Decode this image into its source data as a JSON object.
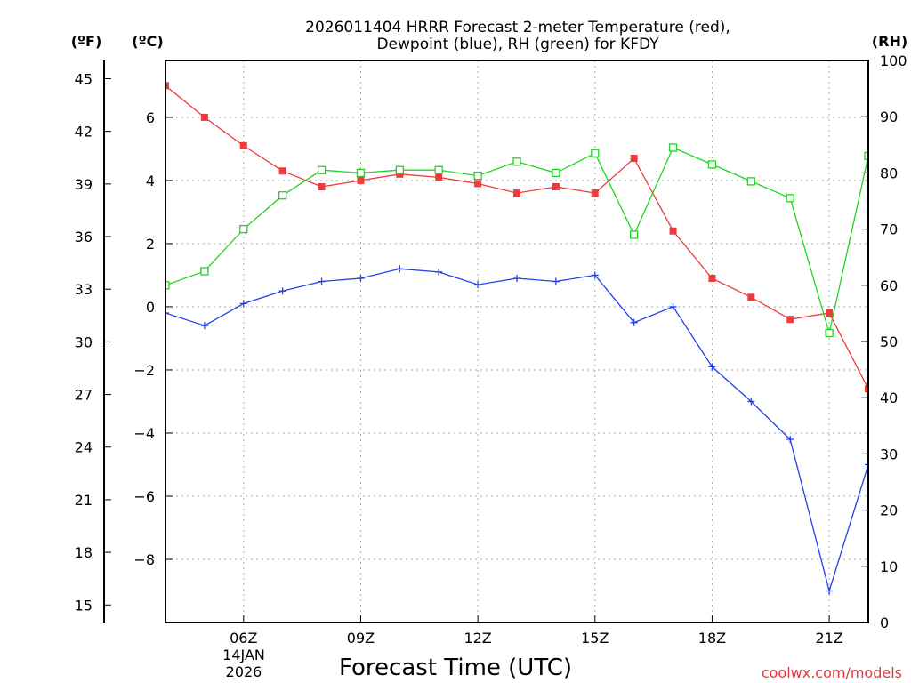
{
  "chart_data": {
    "type": "line",
    "title": [
      "2026011404 HRRR Forecast 2-meter Temperature (red),",
      "Dewpoint (blue), RH (green) for KFDY"
    ],
    "xlabel": "Forecast Time (UTC)",
    "date_label": [
      "14JAN",
      "2026"
    ],
    "credit": "coolwx.com/models",
    "unit_labels": {
      "fahrenheit": "(ºF)",
      "celsius": "(ºC)",
      "rh": "(RH)"
    },
    "x_range": [
      4,
      22
    ],
    "x_ticks": [
      {
        "hour": 6,
        "label": "06Z"
      },
      {
        "hour": 9,
        "label": "09Z"
      },
      {
        "hour": 12,
        "label": "12Z"
      },
      {
        "hour": 15,
        "label": "15Z"
      },
      {
        "hour": 18,
        "label": "18Z"
      },
      {
        "hour": 21,
        "label": "21Z"
      }
    ],
    "celsius_range": [
      -10.0,
      7.8
    ],
    "celsius_ticks": [
      {
        "value": 6,
        "label": "6"
      },
      {
        "value": 4,
        "label": "4"
      },
      {
        "value": 2,
        "label": "2"
      },
      {
        "value": 0,
        "label": "0"
      },
      {
        "value": -2,
        "label": "−2"
      },
      {
        "value": -4,
        "label": "−4"
      },
      {
        "value": -6,
        "label": "−6"
      },
      {
        "value": -8,
        "label": "−8"
      }
    ],
    "fahrenheit_ticks": [
      {
        "value": 45,
        "label": "45"
      },
      {
        "value": 42,
        "label": "42"
      },
      {
        "value": 39,
        "label": "39"
      },
      {
        "value": 36,
        "label": "36"
      },
      {
        "value": 33,
        "label": "33"
      },
      {
        "value": 30,
        "label": "30"
      },
      {
        "value": 27,
        "label": "27"
      },
      {
        "value": 24,
        "label": "24"
      },
      {
        "value": 21,
        "label": "21"
      },
      {
        "value": 18,
        "label": "18"
      },
      {
        "value": 15,
        "label": "15"
      }
    ],
    "rh_range": [
      0,
      100
    ],
    "rh_ticks": [
      {
        "value": 100,
        "label": "100"
      },
      {
        "value": 90,
        "label": "90"
      },
      {
        "value": 80,
        "label": "80"
      },
      {
        "value": 70,
        "label": "70"
      },
      {
        "value": 60,
        "label": "60"
      },
      {
        "value": 50,
        "label": "50"
      },
      {
        "value": 40,
        "label": "40"
      },
      {
        "value": 30,
        "label": "30"
      },
      {
        "value": 20,
        "label": "20"
      },
      {
        "value": 10,
        "label": "10"
      },
      {
        "value": 0,
        "label": "0"
      }
    ],
    "grid": true,
    "x": [
      4,
      5,
      6,
      7,
      8,
      9,
      10,
      11,
      12,
      13,
      14,
      15,
      16,
      17,
      18,
      19,
      20,
      21,
      22
    ],
    "series": [
      {
        "name": "2-meter Temperature",
        "axis": "celsius",
        "color": "#ee3a3a",
        "marker": "filled-square",
        "values": [
          7.0,
          6.0,
          5.1,
          4.3,
          3.8,
          4.0,
          4.2,
          4.1,
          3.9,
          3.6,
          3.8,
          3.6,
          4.7,
          2.4,
          0.9,
          0.3,
          -0.4,
          -0.2,
          -2.6
        ]
      },
      {
        "name": "Dewpoint",
        "axis": "celsius",
        "color": "#2442e8",
        "marker": "plus",
        "values": [
          -0.2,
          -0.6,
          0.1,
          0.5,
          0.8,
          0.9,
          1.2,
          1.1,
          0.7,
          0.9,
          0.8,
          1.0,
          -0.5,
          0.0,
          -1.9,
          -3.0,
          -4.2,
          -9.0,
          -5.0
        ]
      },
      {
        "name": "Relative Humidity",
        "axis": "rh",
        "color": "#22d422",
        "marker": "open-square",
        "values": [
          60,
          62.5,
          70,
          76,
          80.5,
          80,
          80.5,
          80.5,
          79.5,
          82,
          80,
          83.5,
          69,
          84.5,
          81.5,
          78.5,
          75.5,
          51.5,
          83
        ]
      }
    ]
  }
}
